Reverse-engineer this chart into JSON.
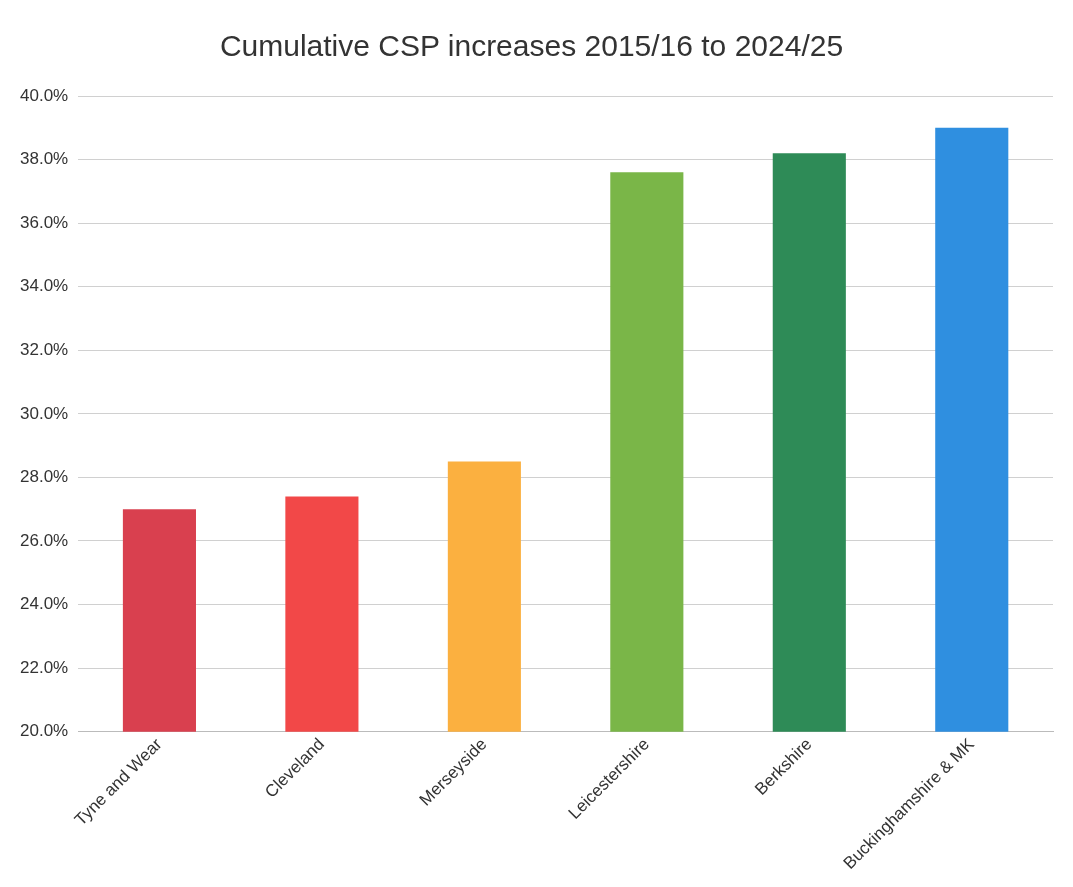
{
  "chart_data": {
    "type": "bar",
    "title": "Cumulative CSP increases 2015/16 to 2024/25",
    "categories": [
      "Tyne and Wear",
      "Cleveland",
      "Merseyside",
      "Leicestershire",
      "Berkshire",
      "Buckinghamshire & MK"
    ],
    "values": [
      27.0,
      27.4,
      28.5,
      37.6,
      38.2,
      39.0
    ],
    "colors": [
      "#d9404f",
      "#f24848",
      "#fbb040",
      "#7ab648",
      "#2e8b57",
      "#2f8fe0"
    ],
    "ylim": [
      20,
      40
    ],
    "yticks": [
      {
        "value": 20,
        "label": "20.0%"
      },
      {
        "value": 22,
        "label": "22.0%"
      },
      {
        "value": 24,
        "label": "24.0%"
      },
      {
        "value": 26,
        "label": "26.0%"
      },
      {
        "value": 28,
        "label": "28.0%"
      },
      {
        "value": 30,
        "label": "30.0%"
      },
      {
        "value": 32,
        "label": "32.0%"
      },
      {
        "value": 34,
        "label": "34.0%"
      },
      {
        "value": 36,
        "label": "36.0%"
      },
      {
        "value": 38,
        "label": "38.0%"
      },
      {
        "value": 40,
        "label": "40.0%"
      }
    ],
    "grid": "y",
    "legend": false
  }
}
